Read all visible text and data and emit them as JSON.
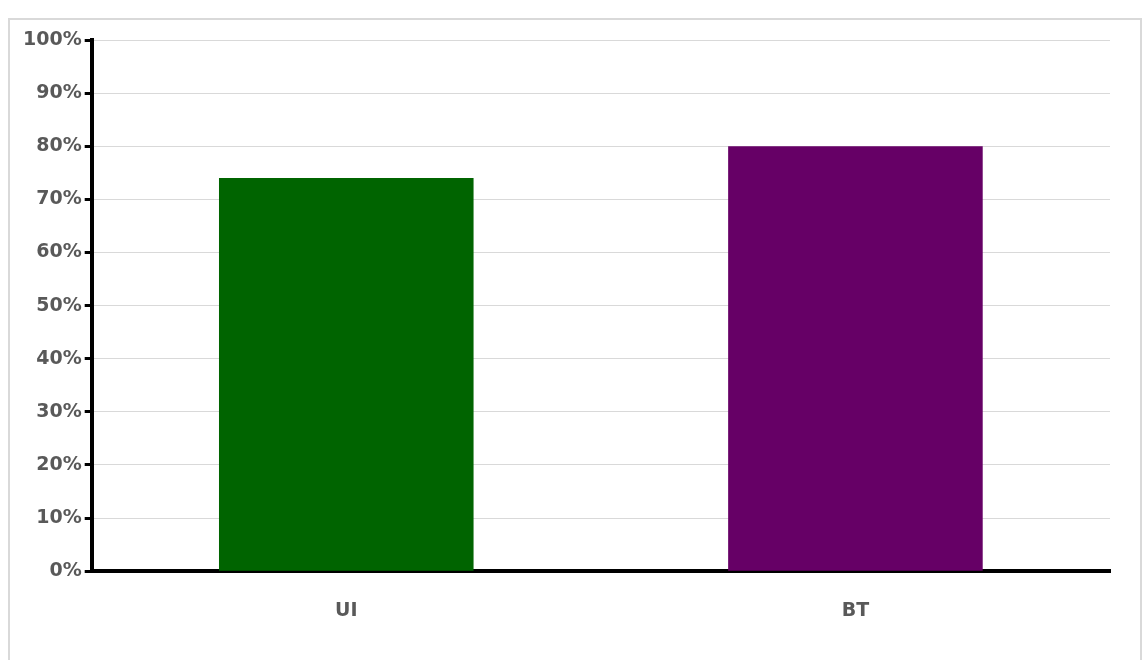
{
  "chart_data": {
    "type": "bar",
    "categories": [
      "UI",
      "BT"
    ],
    "series": [
      {
        "colors": [
          "#006400",
          "#660066"
        ],
        "values": [
          74,
          80
        ]
      }
    ],
    "ylim": [
      0,
      100
    ],
    "yticks": [
      {
        "value": 0,
        "label": "0%"
      },
      {
        "value": 10,
        "label": "10%"
      },
      {
        "value": 20,
        "label": "20%"
      },
      {
        "value": 30,
        "label": "30%"
      },
      {
        "value": 40,
        "label": "40%"
      },
      {
        "value": 50,
        "label": "50%"
      },
      {
        "value": 60,
        "label": "60%"
      },
      {
        "value": 70,
        "label": "70%"
      },
      {
        "value": 80,
        "label": "80%"
      },
      {
        "value": 90,
        "label": "90%"
      },
      {
        "value": 100,
        "label": "100%"
      }
    ],
    "grid": "y",
    "legend": false
  }
}
